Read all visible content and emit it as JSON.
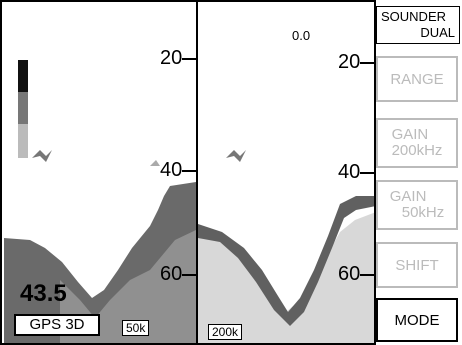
{
  "header": {
    "range_value": "0.0"
  },
  "mode_indicator": {
    "line1": "SOUNDER",
    "line2": "DUAL"
  },
  "depth_scale": {
    "left": [
      "20",
      "40",
      "60"
    ],
    "right": [
      "20",
      "40",
      "60"
    ]
  },
  "readouts": {
    "depth": "43.5",
    "gps_status": "GPS 3D"
  },
  "frequencies": {
    "left": "50k",
    "right": "200k"
  },
  "softkeys": {
    "range": "RANGE",
    "gain_200": [
      "GAIN",
      "200kHz"
    ],
    "gain_50": [
      "GAIN",
      "50kHz"
    ],
    "shift": "SHIFT",
    "mode": "MODE"
  },
  "colors": {
    "strong_echo": "#555555",
    "medium_echo": "#8a8a8a",
    "weak_echo": "#c8c8c8",
    "background": "#ffffff"
  }
}
